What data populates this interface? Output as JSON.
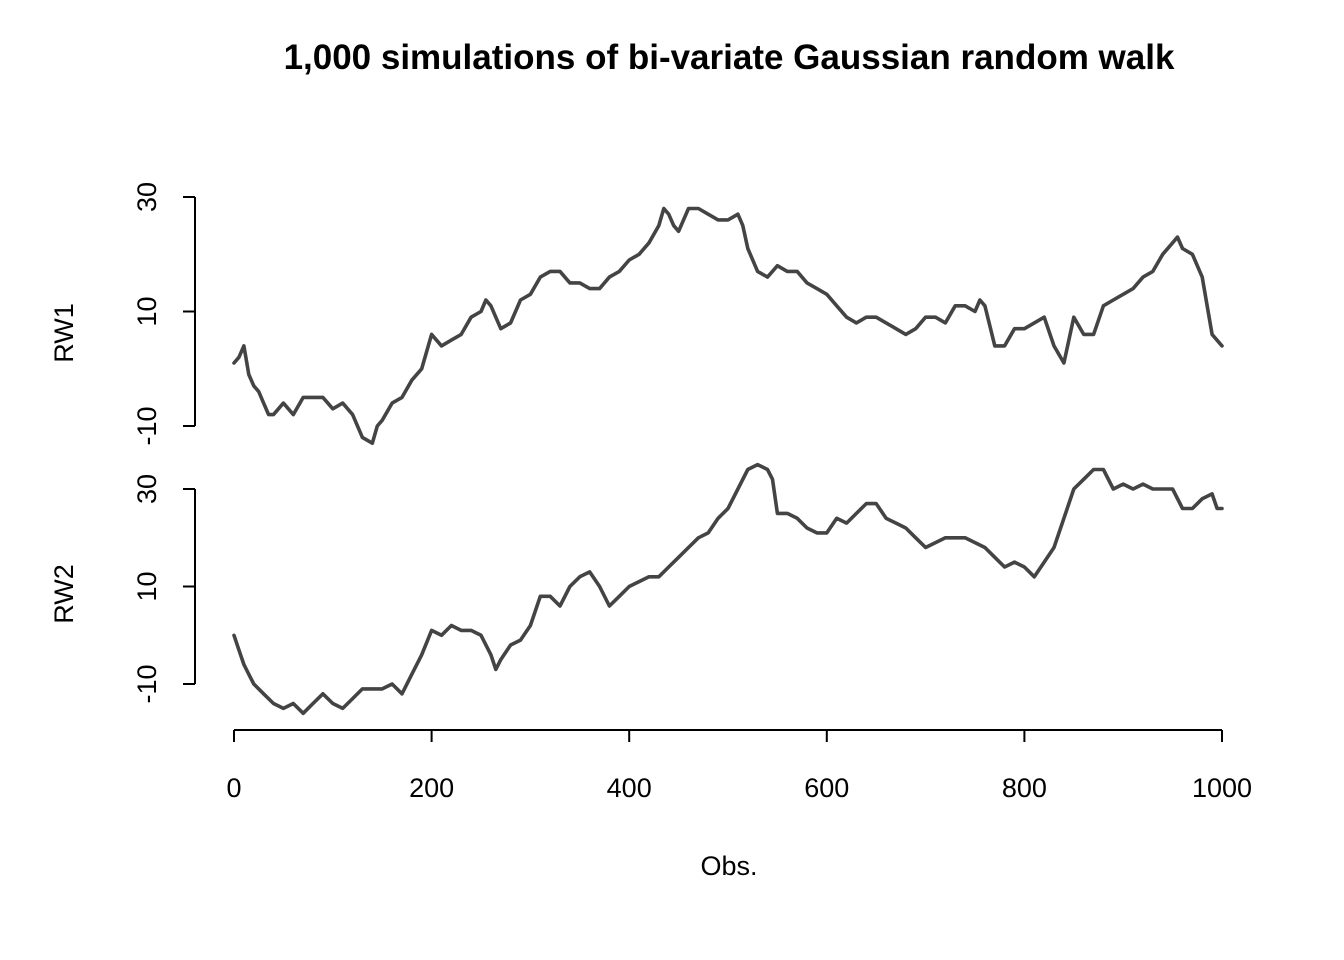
{
  "chart_data": {
    "type": "line",
    "title": "1,000 simulations of bi-variate Gaussian random walk",
    "xlabel": "Obs.",
    "xlim": [
      0,
      1000
    ],
    "x_ticks": [
      "0",
      "200",
      "400",
      "600",
      "800",
      "1000"
    ],
    "line_color": "#444444",
    "grid": false,
    "legend": "none",
    "panels": [
      {
        "ylabel": "RW1",
        "ylim": [
          -10,
          30
        ],
        "y_ticks": [
          "-10",
          "10",
          "30"
        ],
        "series": [
          {
            "x": [
              0,
              5,
              10,
              15,
              20,
              25,
              30,
              35,
              40,
              50,
              60,
              70,
              80,
              90,
              100,
              110,
              120,
              130,
              140,
              145,
              150,
              160,
              170,
              180,
              190,
              200,
              210,
              220,
              230,
              240,
              250,
              255,
              260,
              265,
              270,
              280,
              290,
              300,
              310,
              320,
              330,
              340,
              350,
              360,
              370,
              380,
              390,
              400,
              410,
              420,
              430,
              435,
              440,
              445,
              450,
              460,
              470,
              480,
              490,
              500,
              510,
              515,
              520,
              530,
              540,
              550,
              560,
              570,
              580,
              590,
              600,
              610,
              620,
              630,
              640,
              650,
              660,
              670,
              680,
              690,
              700,
              710,
              720,
              730,
              740,
              750,
              755,
              760,
              770,
              780,
              790,
              800,
              810,
              820,
              830,
              840,
              850,
              860,
              870,
              880,
              890,
              900,
              910,
              920,
              930,
              940,
              950,
              955,
              960,
              970,
              980,
              990,
              1000
            ],
            "y": [
              1,
              2,
              4,
              -1,
              -3,
              -4,
              -6,
              -8,
              -8,
              -6,
              -8,
              -5,
              -5,
              -5,
              -7,
              -6,
              -8,
              -12,
              -13,
              -10,
              -9,
              -6,
              -5,
              -2,
              0,
              6,
              4,
              5,
              6,
              9,
              10,
              12,
              11,
              9,
              7,
              8,
              12,
              13,
              16,
              17,
              17,
              15,
              15,
              14,
              14,
              16,
              17,
              19,
              20,
              22,
              25,
              28,
              27,
              25,
              24,
              28,
              28,
              27,
              26,
              26,
              27,
              25,
              21,
              17,
              16,
              18,
              17,
              17,
              15,
              14,
              13,
              11,
              9,
              8,
              9,
              9,
              8,
              7,
              6,
              7,
              9,
              9,
              8,
              11,
              11,
              10,
              12,
              11,
              4,
              4,
              7,
              7,
              8,
              9,
              4,
              1,
              9,
              6,
              6,
              11,
              12,
              13,
              14,
              16,
              17,
              20,
              22,
              23,
              21,
              20,
              16,
              6,
              4
            ]
          }
        ]
      },
      {
        "ylabel": "RW2",
        "ylim": [
          -10,
          30
        ],
        "y_ticks": [
          "-10",
          "10",
          "30"
        ],
        "series": [
          {
            "x": [
              0,
              5,
              10,
              15,
              20,
              30,
              40,
              50,
              60,
              70,
              80,
              90,
              100,
              110,
              120,
              130,
              140,
              150,
              160,
              170,
              180,
              190,
              200,
              210,
              220,
              230,
              240,
              250,
              260,
              265,
              270,
              280,
              290,
              300,
              310,
              315,
              320,
              330,
              340,
              350,
              360,
              370,
              380,
              390,
              400,
              410,
              420,
              430,
              440,
              450,
              460,
              470,
              480,
              490,
              500,
              510,
              520,
              530,
              540,
              545,
              550,
              560,
              570,
              580,
              590,
              600,
              610,
              620,
              630,
              640,
              650,
              660,
              670,
              680,
              690,
              700,
              710,
              720,
              730,
              740,
              750,
              760,
              770,
              780,
              790,
              800,
              810,
              820,
              830,
              840,
              850,
              860,
              870,
              880,
              890,
              900,
              910,
              920,
              930,
              940,
              950,
              960,
              970,
              980,
              990,
              995,
              1000
            ],
            "y": [
              0,
              -3,
              -6,
              -8,
              -10,
              -12,
              -14,
              -15,
              -14,
              -16,
              -14,
              -12,
              -14,
              -15,
              -13,
              -11,
              -11,
              -11,
              -10,
              -12,
              -8,
              -4,
              1,
              0,
              2,
              1,
              1,
              0,
              -4,
              -7,
              -5,
              -2,
              -1,
              2,
              8,
              8,
              8,
              6,
              10,
              12,
              13,
              10,
              6,
              8,
              10,
              11,
              12,
              12,
              14,
              16,
              18,
              20,
              21,
              24,
              26,
              30,
              34,
              35,
              34,
              32,
              25,
              25,
              24,
              22,
              21,
              21,
              24,
              23,
              25,
              27,
              27,
              24,
              23,
              22,
              20,
              18,
              19,
              20,
              20,
              20,
              19,
              18,
              16,
              14,
              15,
              14,
              12,
              15,
              18,
              24,
              30,
              32,
              34,
              34,
              30,
              31,
              30,
              31,
              30,
              30,
              30,
              26,
              26,
              28,
              29,
              26,
              26
            ]
          }
        ]
      }
    ]
  }
}
